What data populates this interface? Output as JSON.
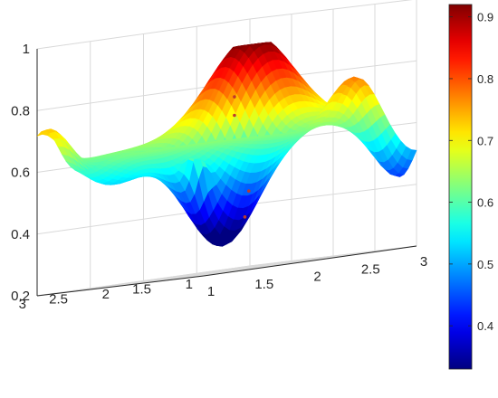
{
  "chart_data": {
    "type": "surface",
    "title": "",
    "xlabel": "",
    "ylabel": "",
    "zlabel": "",
    "xlim": [
      1,
      3
    ],
    "ylim": [
      1,
      3
    ],
    "zlim": [
      0.2,
      1.0
    ],
    "x_ticks": [
      "1",
      "1.5",
      "2",
      "2.5",
      "3"
    ],
    "y_ticks": [
      "1",
      "1.5",
      "2",
      "2.5",
      "3"
    ],
    "z_ticks": [
      "0.2",
      "0.4",
      "0.6",
      "0.8",
      "1"
    ],
    "colorbar": {
      "range": [
        0.33,
        0.92
      ],
      "ticks": [
        "0.4",
        "0.5",
        "0.6",
        "0.7",
        "0.8",
        "0.9"
      ],
      "colormap": "jet",
      "placement": "right"
    },
    "grid": true,
    "surface_z_range": [
      0.28,
      0.92
    ],
    "marked_points": [
      {
        "x": 2.15,
        "y": 2.1,
        "z": 0.76
      },
      {
        "x": 2.15,
        "y": 2.1,
        "z": 0.7
      },
      {
        "x": 2.05,
        "y": 1.8,
        "z": 0.45
      },
      {
        "x": 1.7,
        "y": 1.4,
        "z": 0.37
      }
    ]
  }
}
